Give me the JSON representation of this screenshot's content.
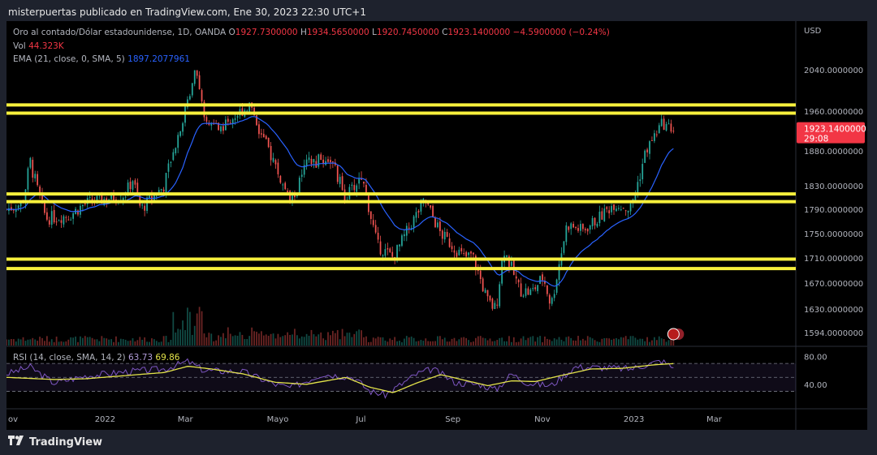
{
  "header": {
    "text": "misterpuertas publicado en TradingView.com, Ene 30, 2023 22:30 UTC+1"
  },
  "footer": {
    "logo_icon": "tradingview-logo-icon",
    "brand": "TradingView"
  },
  "legend": {
    "symbol": "Oro al contado/Dólar estadounidense, 1D, OANDA",
    "o_label": "O",
    "o_value": "1927.7300000",
    "h_label": "H",
    "h_value": "1934.5650000",
    "l_label": "L",
    "l_value": "1920.7450000",
    "c_label": "C",
    "c_value": "1923.1400000",
    "change": "−4.5900000 (−0.24%)",
    "vol_label": "Vol",
    "vol_value": "44.323K",
    "ema_label": "EMA (21, close, 0, SMA, 5)",
    "ema_value": "1897.2077961",
    "rsi_label": "RSI (14, close, SMA, 14, 2)",
    "rsi_value": "63.73",
    "rsi_ma_value": "69.86"
  },
  "price_tag": {
    "value": "1923.1400000",
    "countdown": "29:08"
  },
  "colors": {
    "up": "#26a69a",
    "down": "#ef5350",
    "ema": "#2962ff",
    "level": "#f7f03c",
    "rsi": "#7e57c2",
    "rsi_ma": "#e3e34a"
  },
  "chart_data": {
    "type": "candlestick",
    "currency_label": "USD",
    "price_ticks": [
      "2040.0000000",
      "1960.0000000",
      "1880.0000000",
      "1830.0000000",
      "1790.0000000",
      "1750.0000000",
      "1710.0000000",
      "1670.0000000",
      "1630.0000000",
      "1594.0000000"
    ],
    "price_tick_values": [
      2040,
      1960,
      1880,
      1830,
      1790,
      1750,
      1710,
      1670,
      1630,
      1594
    ],
    "x_ticks": [
      "ov",
      "2022",
      "Mar",
      "Mayo",
      "Jul",
      "Sep",
      "Nov",
      "2023",
      "Mar"
    ],
    "x_tick_pos": [
      0.0,
      0.118,
      0.223,
      0.336,
      0.449,
      0.562,
      0.675,
      0.788,
      0.893
    ],
    "horizontal_levels": [
      1972,
      1956,
      1816,
      1803,
      1708,
      1693
    ],
    "price_path": [
      [
        0,
        1790
      ],
      [
        0.02,
        1800
      ],
      [
        0.03,
        1865
      ],
      [
        0.05,
        1775
      ],
      [
        0.08,
        1780
      ],
      [
        0.1,
        1800
      ],
      [
        0.15,
        1815
      ],
      [
        0.16,
        1840
      ],
      [
        0.17,
        1790
      ],
      [
        0.2,
        1830
      ],
      [
        0.215,
        1900
      ],
      [
        0.23,
        1980
      ],
      [
        0.24,
        2055
      ],
      [
        0.25,
        1940
      ],
      [
        0.27,
        1925
      ],
      [
        0.31,
        1975
      ],
      [
        0.32,
        1920
      ],
      [
        0.34,
        1860
      ],
      [
        0.36,
        1800
      ],
      [
        0.38,
        1860
      ],
      [
        0.41,
        1870
      ],
      [
        0.43,
        1810
      ],
      [
        0.45,
        1845
      ],
      [
        0.47,
        1730
      ],
      [
        0.49,
        1710
      ],
      [
        0.51,
        1760
      ],
      [
        0.53,
        1805
      ],
      [
        0.55,
        1750
      ],
      [
        0.58,
        1710
      ],
      [
        0.59,
        1715
      ],
      [
        0.61,
        1640
      ],
      [
        0.62,
        1630
      ],
      [
        0.63,
        1725
      ],
      [
        0.65,
        1660
      ],
      [
        0.665,
        1655
      ],
      [
        0.68,
        1680
      ],
      [
        0.69,
        1635
      ],
      [
        0.71,
        1765
      ],
      [
        0.73,
        1755
      ],
      [
        0.75,
        1775
      ],
      [
        0.77,
        1800
      ],
      [
        0.79,
        1790
      ],
      [
        0.81,
        1880
      ],
      [
        0.83,
        1935
      ],
      [
        0.845,
        1923
      ]
    ],
    "ema_last": 1897.2077961,
    "rsi_ticks": [
      "80.00",
      "40.00"
    ],
    "rsi_tick_values": [
      80,
      40
    ],
    "rsi_levels": [
      70,
      50,
      30
    ],
    "rsi_path": [
      [
        0,
        55
      ],
      [
        0.03,
        65
      ],
      [
        0.06,
        42
      ],
      [
        0.1,
        52
      ],
      [
        0.15,
        58
      ],
      [
        0.2,
        62
      ],
      [
        0.23,
        73
      ],
      [
        0.25,
        60
      ],
      [
        0.3,
        58
      ],
      [
        0.34,
        40
      ],
      [
        0.36,
        35
      ],
      [
        0.4,
        55
      ],
      [
        0.44,
        50
      ],
      [
        0.46,
        30
      ],
      [
        0.48,
        25
      ],
      [
        0.52,
        55
      ],
      [
        0.54,
        62
      ],
      [
        0.57,
        42
      ],
      [
        0.6,
        40
      ],
      [
        0.62,
        32
      ],
      [
        0.64,
        55
      ],
      [
        0.66,
        42
      ],
      [
        0.69,
        38
      ],
      [
        0.72,
        65
      ],
      [
        0.76,
        64
      ],
      [
        0.79,
        62
      ],
      [
        0.83,
        74
      ],
      [
        0.845,
        63.73
      ]
    ],
    "rsi_ma_path": [
      [
        0,
        50
      ],
      [
        0.06,
        47
      ],
      [
        0.1,
        48
      ],
      [
        0.2,
        57
      ],
      [
        0.23,
        66
      ],
      [
        0.26,
        62
      ],
      [
        0.3,
        55
      ],
      [
        0.34,
        43
      ],
      [
        0.38,
        40
      ],
      [
        0.43,
        50
      ],
      [
        0.46,
        36
      ],
      [
        0.49,
        28
      ],
      [
        0.52,
        42
      ],
      [
        0.55,
        54
      ],
      [
        0.58,
        46
      ],
      [
        0.61,
        38
      ],
      [
        0.64,
        45
      ],
      [
        0.67,
        44
      ],
      [
        0.7,
        52
      ],
      [
        0.74,
        62
      ],
      [
        0.78,
        63
      ],
      [
        0.82,
        68
      ],
      [
        0.845,
        69.86
      ]
    ]
  }
}
